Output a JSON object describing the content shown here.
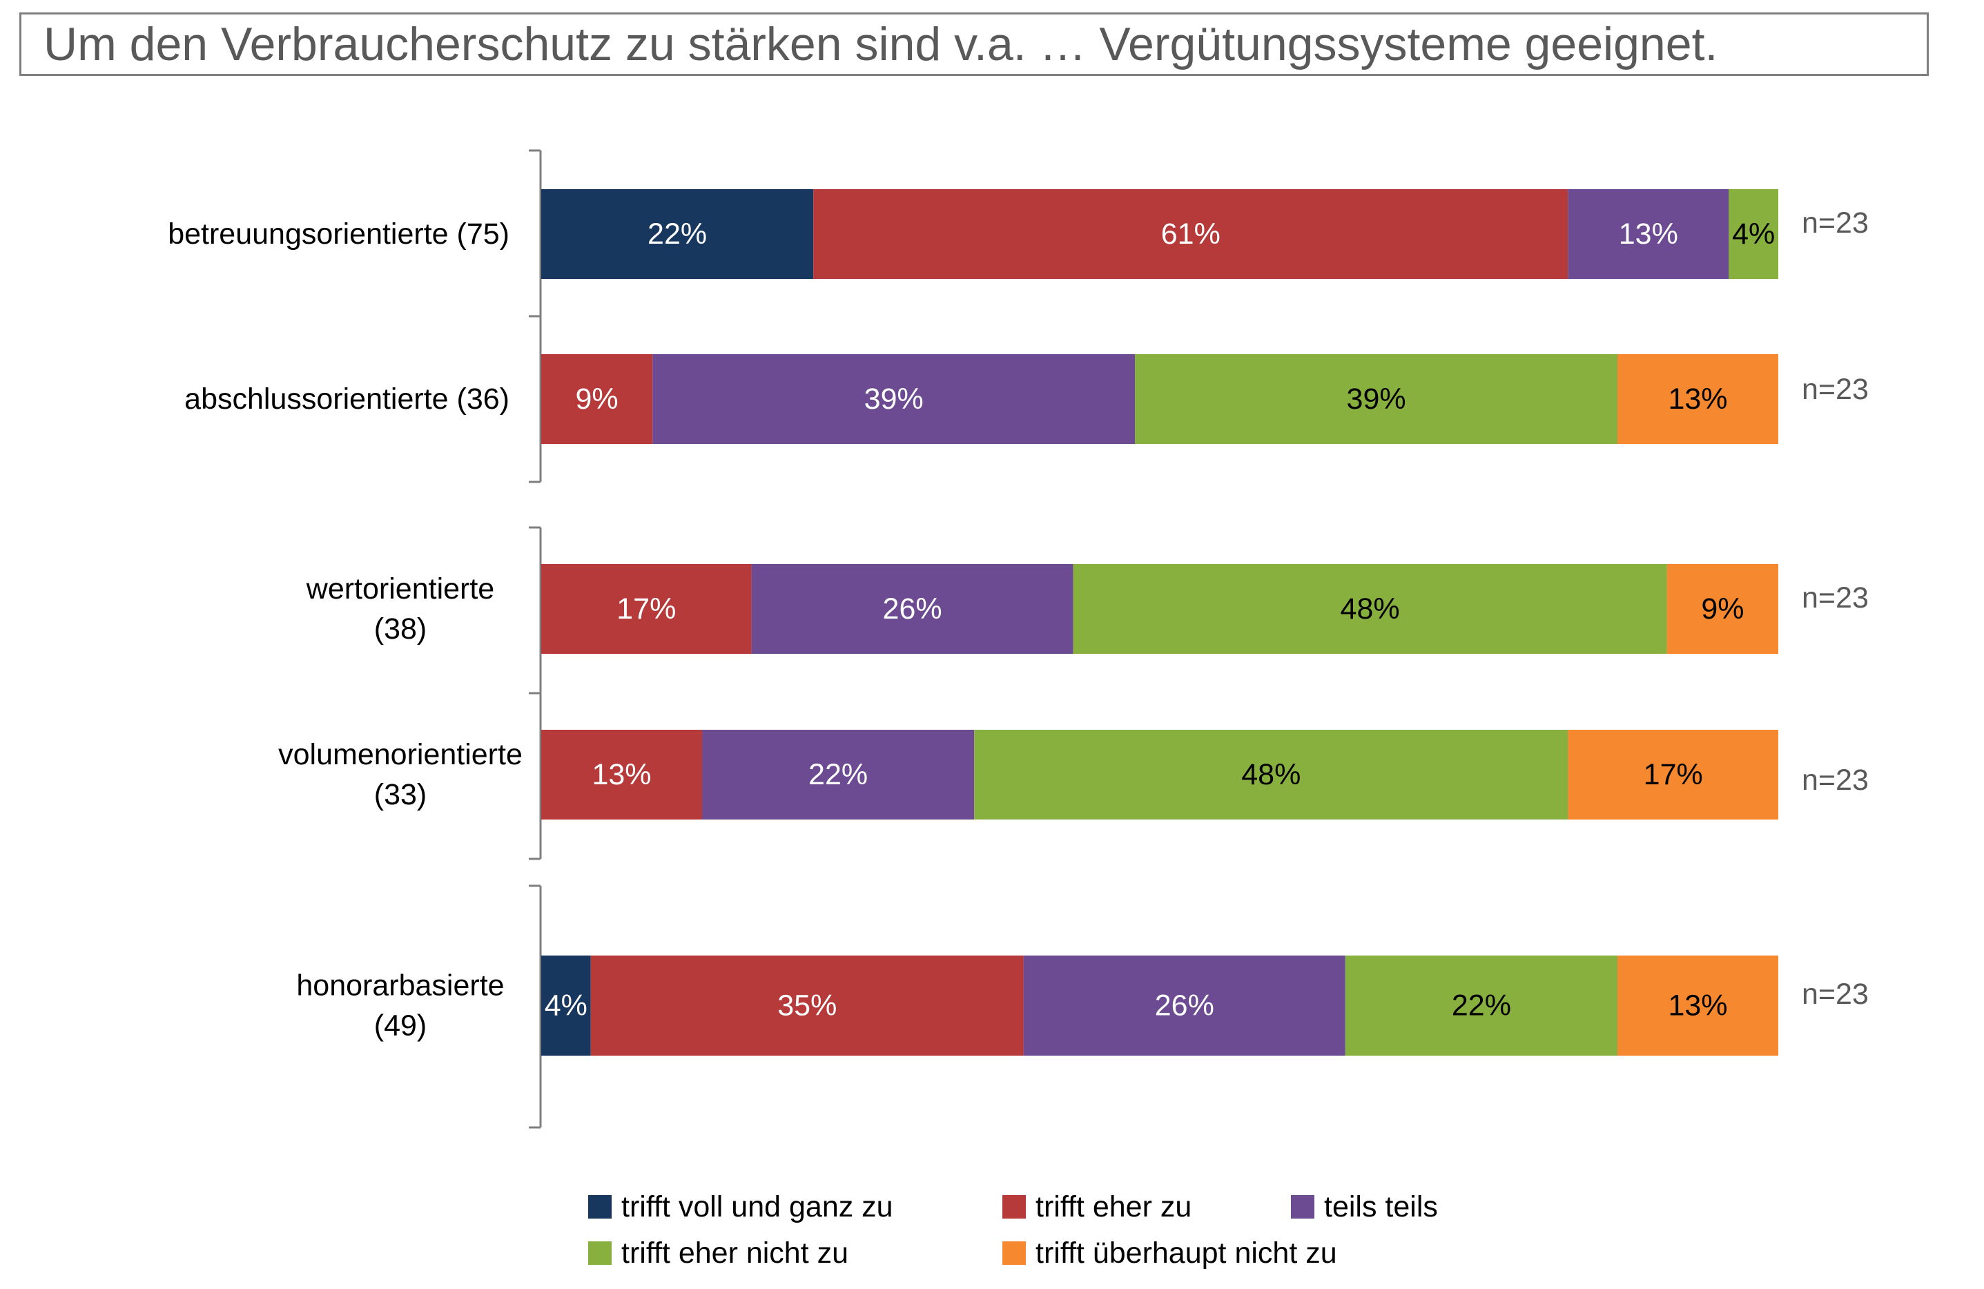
{
  "title": "Um den Verbraucherschutz zu stärken sind v.a. … Vergütungssysteme geeignet.",
  "chart_data": {
    "type": "bar",
    "orientation": "horizontal",
    "stacked": true,
    "title": "Um den Verbraucherschutz zu stärken sind v.a. … Vergütungssysteme geeignet.",
    "xlim": [
      0,
      100
    ],
    "grid": false,
    "legend_position": "bottom",
    "categories": [
      [
        "betreuungsorientierte (75)"
      ],
      [
        "abschlussorientierte (36)"
      ],
      [
        "wertorientierte",
        "(38)"
      ],
      [
        "volumenorientierte",
        "(33)"
      ],
      [
        "honorarbasierte",
        "(49)"
      ]
    ],
    "n_labels": [
      "n=23",
      "n=23",
      "n=23",
      "n=23",
      "n=23"
    ],
    "series": [
      {
        "name": "trifft voll und ganz zu",
        "color": "#17375e",
        "label_color": "#ffffff",
        "values": [
          22,
          0,
          0,
          0,
          4
        ]
      },
      {
        "name": "trifft eher zu",
        "color": "#b63a3a",
        "label_color": "#ffffff",
        "values": [
          61,
          9,
          17,
          13,
          35
        ]
      },
      {
        "name": "teils teils",
        "color": "#6c4b92",
        "label_color": "#ffffff",
        "values": [
          13,
          39,
          26,
          22,
          26
        ]
      },
      {
        "name": "trifft eher nicht zu",
        "color": "#87b03e",
        "label_color": "#000000",
        "values": [
          4,
          39,
          48,
          48,
          22
        ]
      },
      {
        "name": "trifft überhaupt nicht zu",
        "color": "#f6882f",
        "label_color": "#000000",
        "values": [
          0,
          13,
          9,
          17,
          13
        ]
      }
    ]
  }
}
